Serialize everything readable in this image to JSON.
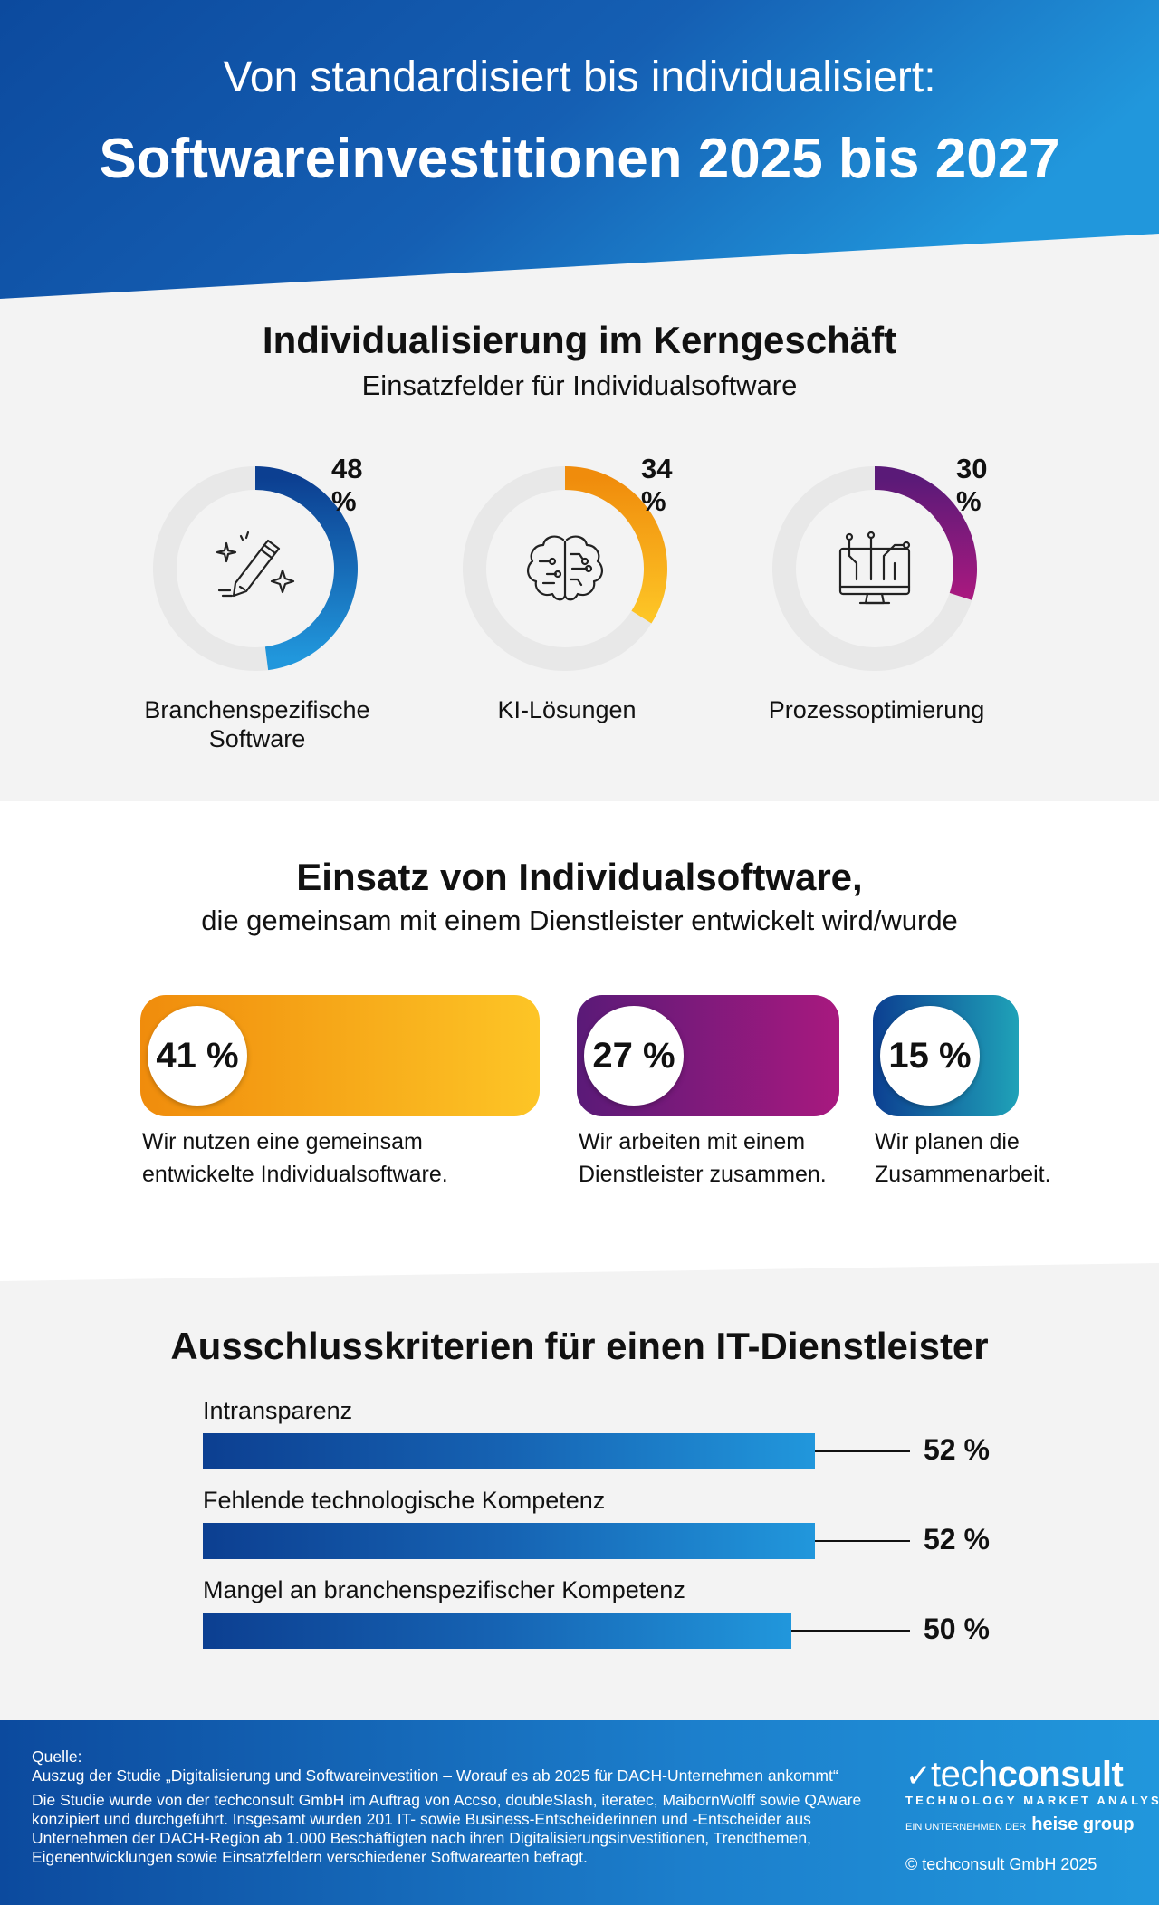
{
  "header": {
    "line1": "Von standardisiert bis individualisiert:",
    "line2": "Softwareinvestitionen 2025 bis 2027"
  },
  "section1": {
    "title": "Individualisierung im Kerngeschäft",
    "subtitle": "Einsatzfelder für Individualsoftware"
  },
  "section2": {
    "title": "Einsatz von Individualsoftware,",
    "subtitle": "die gemeinsam mit einem Dienstleister entwickelt wird/wurde"
  },
  "section3": {
    "title": "Ausschlusskriterien für einen IT-Dienstleister"
  },
  "chart_data": [
    {
      "type": "donut",
      "title": "Individualisierung im Kerngeschäft",
      "subtitle": "Einsatzfelder für Individualsoftware",
      "items": [
        {
          "label": "Branchenspezifische Software",
          "value": 48,
          "value_label": "48 %",
          "color_start": "#0c3f91",
          "color_end": "#2197dc",
          "icon": "pencil-sparkle-icon"
        },
        {
          "label": "KI-Lösungen",
          "value": 34,
          "value_label": "34 %",
          "color_start": "#f08c0c",
          "color_end": "#fdc526",
          "icon": "brain-circuit-icon"
        },
        {
          "label": "Prozessoptimierung",
          "value": 30,
          "value_label": "30 %",
          "color_start": "#5a1a78",
          "color_end": "#a8197f",
          "icon": "monitor-circuit-icon"
        }
      ]
    },
    {
      "type": "bar",
      "title": "Einsatz von Individualsoftware,",
      "subtitle": "die gemeinsam mit einem Dienstleister entwickelt wird/wurde",
      "items": [
        {
          "value": 41,
          "value_label": "41 %",
          "description_line1": "Wir nutzen eine gemeinsam",
          "description_line2": "entwickelte Individualsoftware.",
          "color_start": "#f08c0c",
          "color_end": "#fdc526"
        },
        {
          "value": 27,
          "value_label": "27 %",
          "description_line1": "Wir arbeiten mit einem",
          "description_line2": "Dienstleister zusammen.",
          "color_start": "#5a1a78",
          "color_end": "#a8197f"
        },
        {
          "value": 15,
          "value_label": "15 %",
          "description_line1": "Wir planen die",
          "description_line2": "Zusammenarbeit.",
          "color_start": "#0c3f91",
          "color_end": "#1fa2b8"
        }
      ]
    },
    {
      "type": "bar",
      "title": "Ausschlusskriterien für einen IT-Dienstleister",
      "categories": [
        "Intransparenz",
        "Fehlende technologische Kompetenz",
        "Mangel an branchenspezifischer Kompetenz"
      ],
      "values": [
        52,
        52,
        50
      ],
      "value_labels": [
        "52 %",
        "52 %",
        "50 %"
      ]
    }
  ],
  "footer": {
    "source_label": "Quelle:",
    "source_line": "Auszug der Studie „Digitalisierung und Softwareinvestition – Worauf es ab 2025 für DACH-Unternehmen ankommt“",
    "description": "Die Studie wurde von der techconsult GmbH im Auftrag von Accso, doubleSlash, iteratec, MaibornWolff sowie QAware konzipiert und durchgeführt. Insgesamt wurden 201 IT- sowie Business-Entscheiderinnen und -Entscheider aus Unternehmen der DACH-Region ab 1.000 Beschäftigten nach ihren Digitalisierungsinvestitionen, Trendthemen, Eigenentwicklungen sowie Einsatzfeldern verschiedener Softwarearten befragt.",
    "logo_thin": "tech",
    "logo_bold": "consult",
    "tagline": "TECHNOLOGY MARKET ANALYSTS",
    "parent_prefix": "EIN UNTERNEHMEN DER",
    "parent_name": "heise group",
    "copyright": "© techconsult GmbH 2025"
  },
  "colors": {
    "header_dark": "#0c4a9e",
    "header_light": "#2197dc",
    "section_bg": "#f3f3f3",
    "ring_track": "#e8e8e8"
  }
}
